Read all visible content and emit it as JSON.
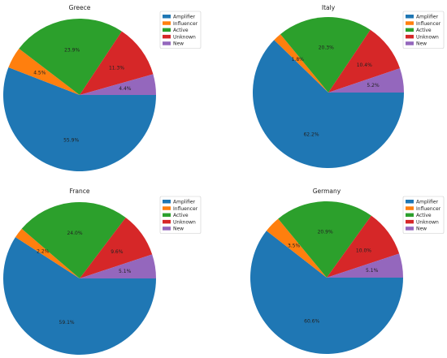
{
  "chart_data": [
    {
      "type": "pie",
      "title": "Greece",
      "categories": [
        "Amplifier",
        "Influencer",
        "Active",
        "Unknown",
        "New"
      ],
      "values": [
        55.9,
        4.5,
        23.9,
        11.3,
        4.4
      ],
      "labels": [
        "55.9%",
        "4.5%",
        "23.9%",
        "11.3%",
        "4.4%"
      ],
      "legend": "top-right"
    },
    {
      "type": "pie",
      "title": "Italy",
      "categories": [
        "Amplifier",
        "Influencer",
        "Active",
        "Unknown",
        "New"
      ],
      "values": [
        62.2,
        1.8,
        20.3,
        10.4,
        5.2
      ],
      "labels": [
        "62.2%",
        "1.8%",
        "20.3%",
        "10.4%",
        "5.2%"
      ],
      "legend": "top-right"
    },
    {
      "type": "pie",
      "title": "France",
      "categories": [
        "Amplifier",
        "Influencer",
        "Active",
        "Unknown",
        "New"
      ],
      "values": [
        59.1,
        2.2,
        24.0,
        9.6,
        5.1
      ],
      "labels": [
        "59.1%",
        "2.2%",
        "24.0%",
        "9.6%",
        "5.1%"
      ],
      "legend": "top-right"
    },
    {
      "type": "pie",
      "title": "Germany",
      "categories": [
        "Amplifier",
        "Influencer",
        "Active",
        "Unknown",
        "New"
      ],
      "values": [
        60.6,
        3.5,
        20.9,
        10.0,
        5.1
      ],
      "labels": [
        "60.6%",
        "3.5%",
        "20.9%",
        "10.0%",
        "5.1%"
      ],
      "legend": "top-right"
    }
  ],
  "colors": {
    "Amplifier": "#1f77b4",
    "Influencer": "#ff7f0e",
    "Active": "#2ca02c",
    "Unknown": "#d62728",
    "New": "#9467bd"
  }
}
